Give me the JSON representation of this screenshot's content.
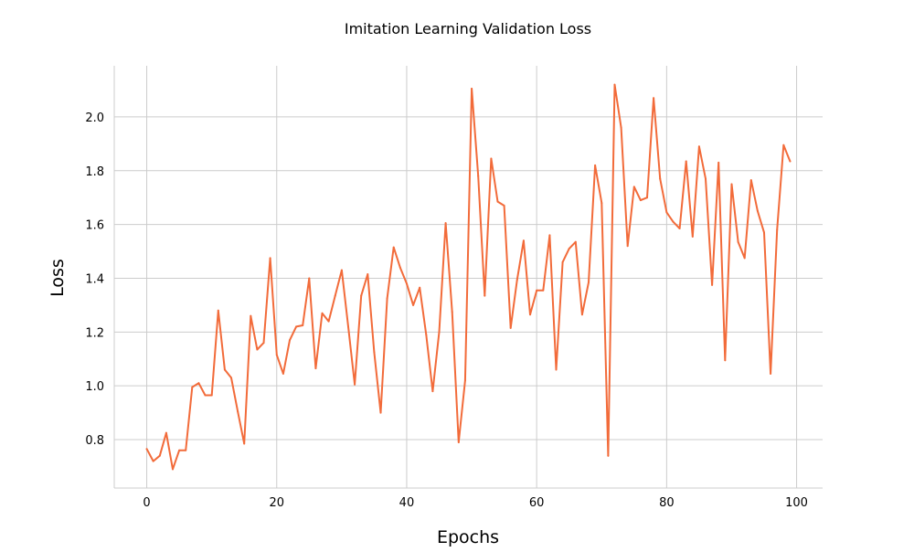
{
  "chart_data": {
    "type": "line",
    "title": "Imitation Learning Validation Loss",
    "xlabel": "Epochs",
    "ylabel": "Loss",
    "xlim": [
      -5,
      104
    ],
    "ylim": [
      0.62,
      2.19
    ],
    "x_ticks": [
      0,
      20,
      40,
      60,
      80,
      100
    ],
    "y_ticks": [
      0.8,
      1.0,
      1.2,
      1.4,
      1.6,
      1.8,
      2.0
    ],
    "grid": true,
    "legend": "none",
    "colors": {
      "line": "#f26b3a",
      "grid": "#cccccc",
      "axis": "#cccccc"
    },
    "series": [
      {
        "x": [
          0,
          1,
          2,
          3,
          4,
          5,
          6,
          7,
          8,
          9,
          10,
          11,
          12,
          13,
          14,
          15,
          16,
          17,
          18,
          19,
          20,
          21,
          22,
          23,
          24,
          25,
          26,
          27,
          28,
          29,
          30,
          31,
          32,
          33,
          34,
          35,
          36,
          37,
          38,
          39,
          40,
          41,
          42,
          43,
          44,
          45,
          46,
          47,
          48,
          49,
          50,
          51,
          52,
          53,
          54,
          55,
          56,
          57,
          58,
          59,
          60,
          61,
          62,
          63,
          64,
          65,
          66,
          67,
          68,
          69,
          70,
          71,
          72,
          73,
          74,
          75,
          76,
          77,
          78,
          79,
          80,
          81,
          82,
          83,
          84,
          85,
          86,
          87,
          88,
          89,
          90,
          91,
          92,
          93,
          94,
          95,
          96,
          97,
          98,
          99
        ],
        "values": [
          0.765,
          0.72,
          0.74,
          0.825,
          0.69,
          0.76,
          0.76,
          0.995,
          1.01,
          0.965,
          0.965,
          1.28,
          1.06,
          1.03,
          0.905,
          0.785,
          1.26,
          1.135,
          1.16,
          1.475,
          1.115,
          1.045,
          1.17,
          1.22,
          1.225,
          1.4,
          1.065,
          1.27,
          1.24,
          1.335,
          1.43,
          1.22,
          1.005,
          1.335,
          1.415,
          1.125,
          0.9,
          1.325,
          1.515,
          1.44,
          1.38,
          1.3,
          1.365,
          1.19,
          0.98,
          1.2,
          1.605,
          1.275,
          0.79,
          1.02,
          2.105,
          1.78,
          1.335,
          1.845,
          1.685,
          1.67,
          1.215,
          1.395,
          1.54,
          1.265,
          1.355,
          1.355,
          1.56,
          1.06,
          1.46,
          1.51,
          1.535,
          1.265,
          1.385,
          1.82,
          1.68,
          0.74,
          2.12,
          1.96,
          1.52,
          1.74,
          1.69,
          1.7,
          2.07,
          1.77,
          1.645,
          1.61,
          1.585,
          1.835,
          1.555,
          1.89,
          1.77,
          1.375,
          1.83,
          1.095,
          1.75,
          1.535,
          1.475,
          1.765,
          1.65,
          1.57,
          1.045,
          1.58,
          1.895,
          1.835
        ]
      }
    ]
  }
}
